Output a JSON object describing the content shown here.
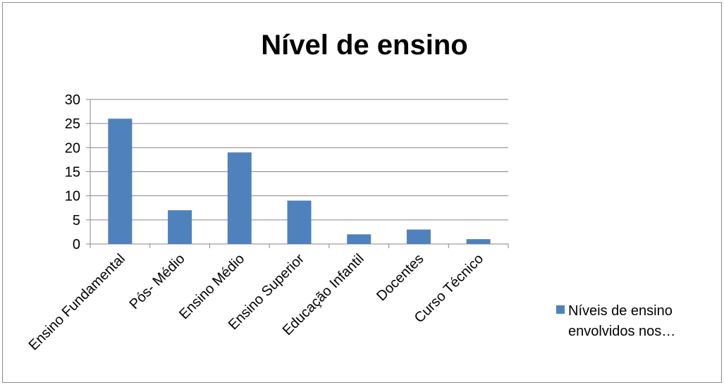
{
  "chart_data": {
    "type": "bar",
    "title": "Nível de ensino",
    "xlabel": "",
    "ylabel": "",
    "categories": [
      "Ensino Fundamental",
      "Pós- Médio",
      "Ensino Médio",
      "Ensino Superior",
      "Educação Infantil",
      "Docentes",
      "Curso Técnico"
    ],
    "series": [
      {
        "name": "Níveis de ensino envolvidos nos…",
        "values": [
          26,
          7,
          19,
          9,
          2,
          3,
          1
        ]
      }
    ],
    "ylim": [
      0,
      30
    ],
    "yticks": [
      0,
      5,
      10,
      15,
      20,
      25,
      30
    ],
    "grid": true,
    "legend": {
      "position": "right",
      "lines": [
        "Níveis de ensino",
        "envolvidos nos…"
      ]
    },
    "colors": {
      "bar": "#4f81bd",
      "grid": "#868686",
      "axis": "#868686"
    }
  }
}
